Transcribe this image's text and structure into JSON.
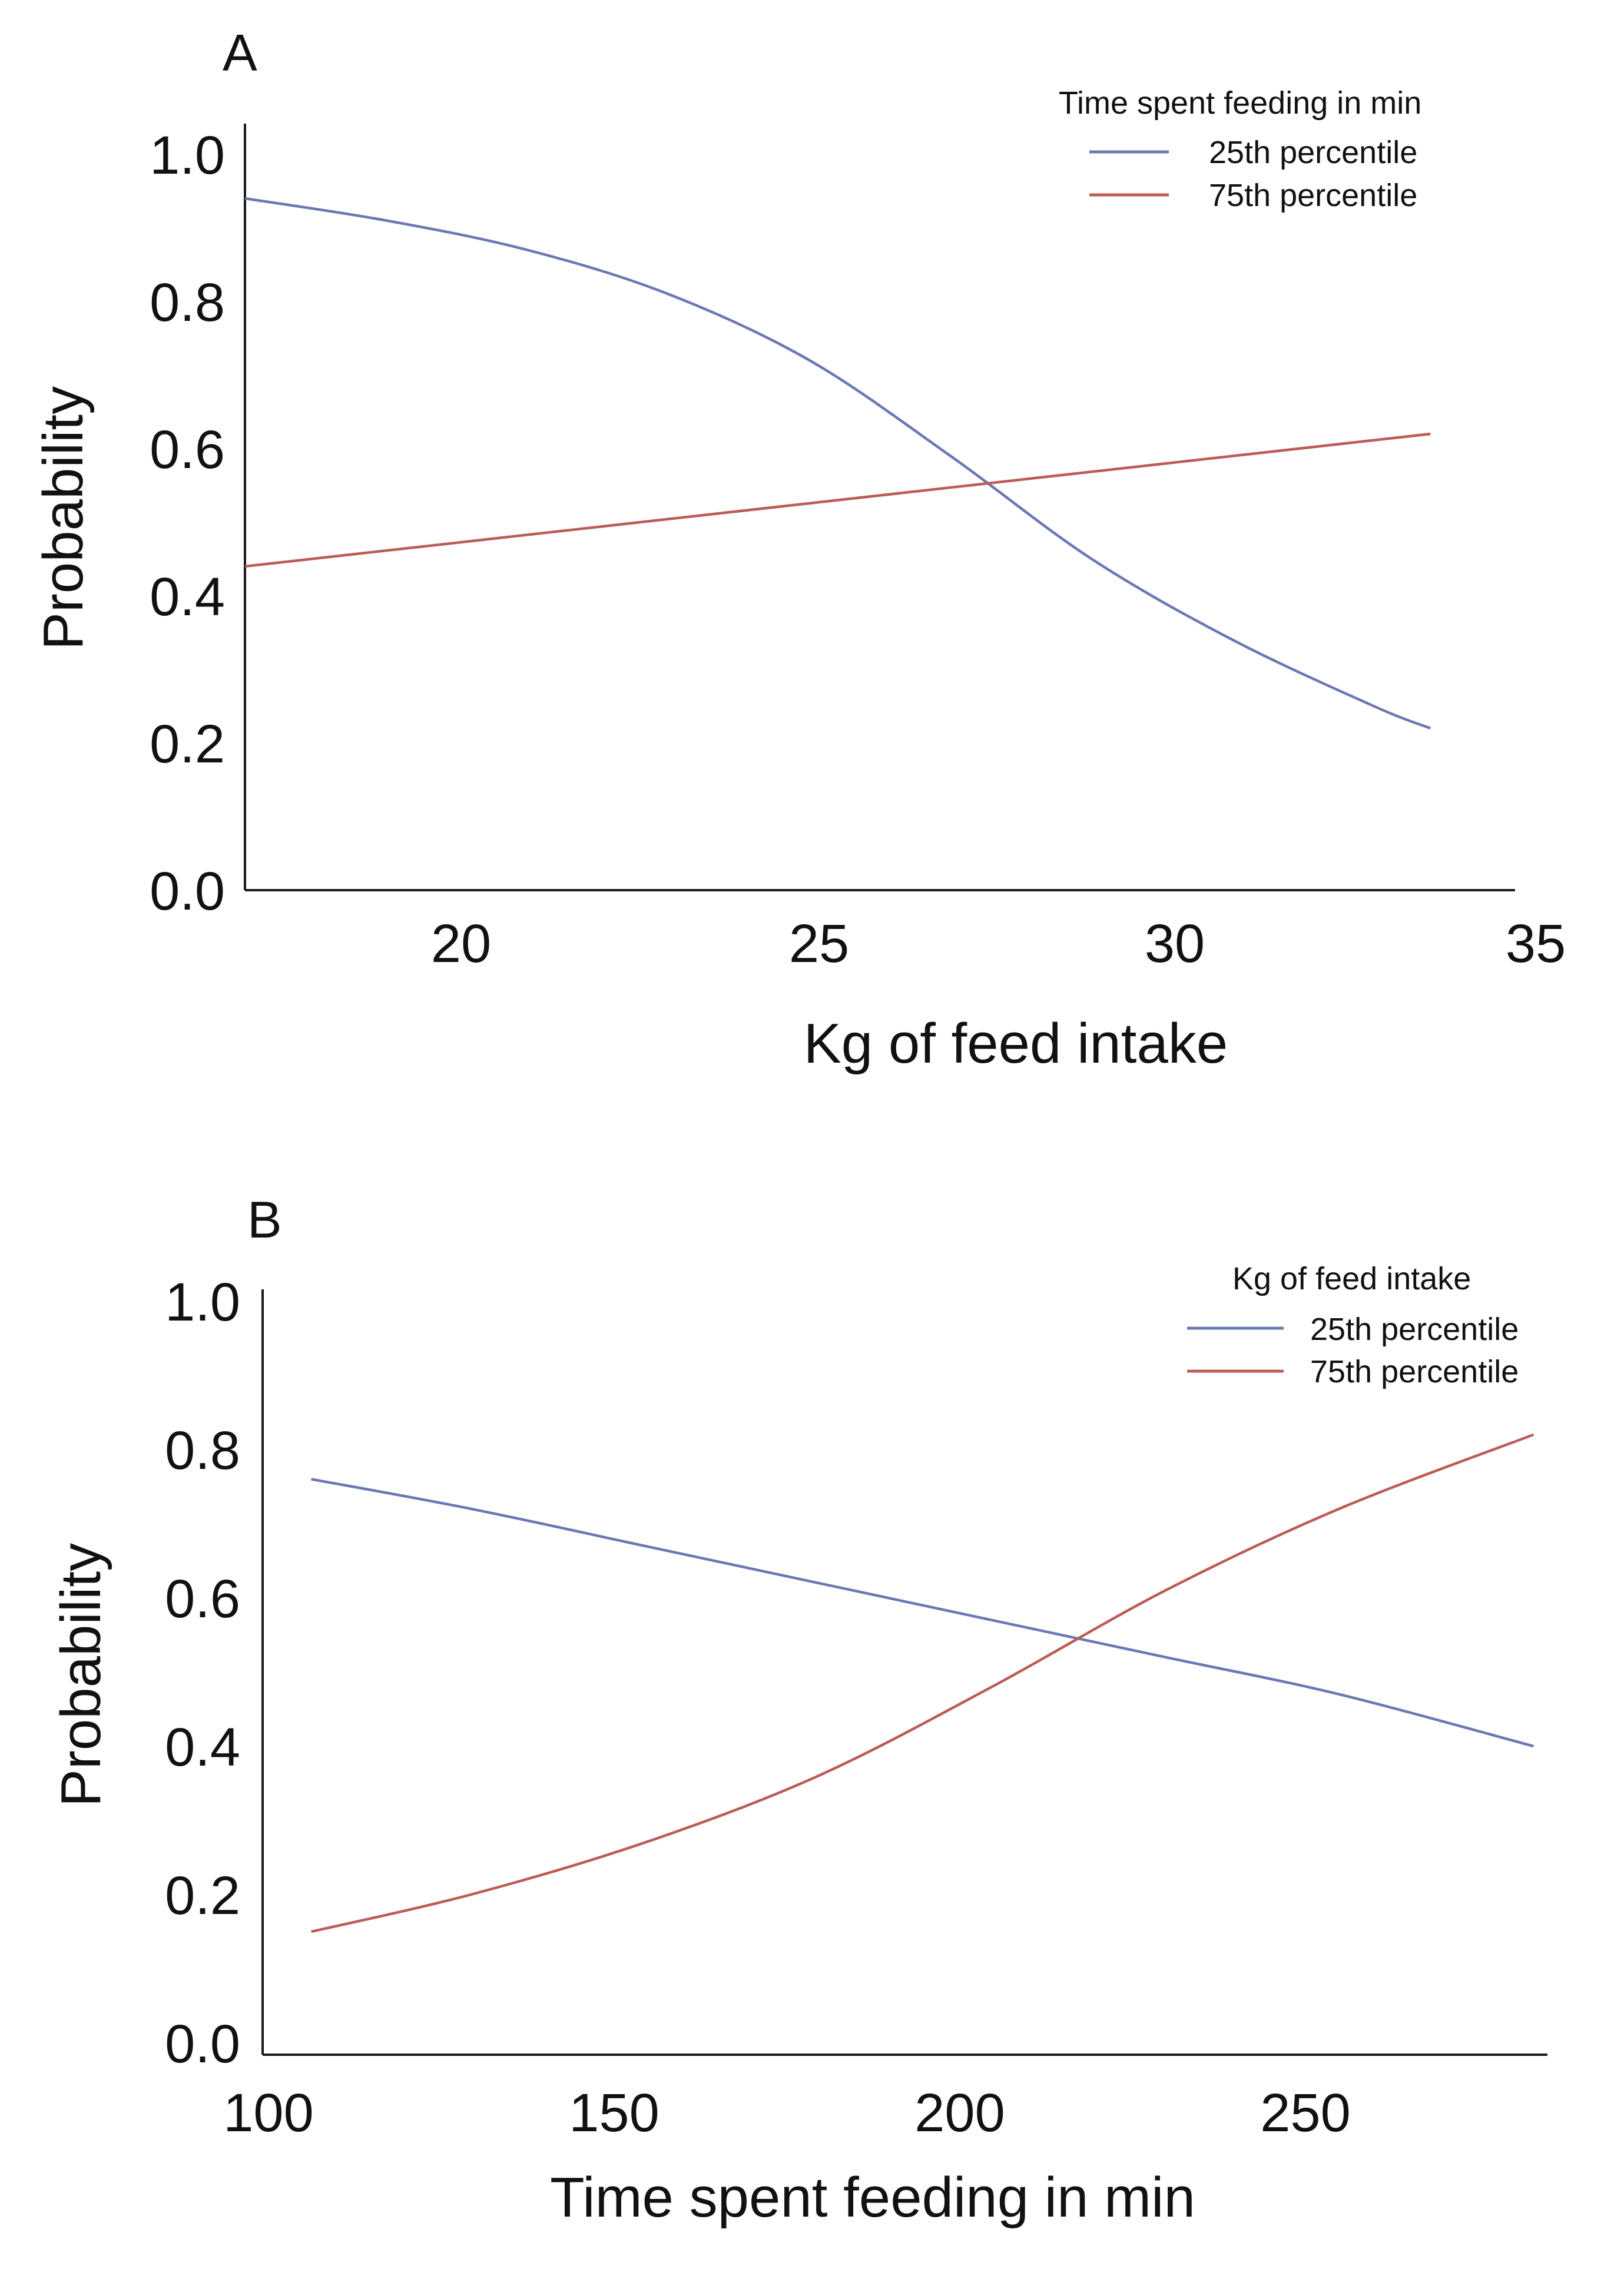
{
  "chart_data": [
    {
      "type": "line",
      "panel_label": "A",
      "title": "",
      "xlabel": "Kg of feed intake",
      "ylabel": "Probability",
      "xlim": [
        17,
        35
      ],
      "ylim": [
        0,
        1
      ],
      "xticks": [
        "20",
        "25",
        "30",
        "35"
      ],
      "yticks": [
        "0.0",
        "0.2",
        "0.4",
        "0.6",
        "0.8",
        "1.0"
      ],
      "grid": false,
      "legend": {
        "title": "Time spent feeding in min",
        "position": "top-right",
        "entries": [
          "25th percentile",
          "75th percentile"
        ]
      },
      "series": [
        {
          "name": "25th percentile",
          "color": "#6b78b4",
          "x": [
            17,
            19,
            21,
            23,
            25,
            27,
            29,
            31,
            33,
            33.8
          ],
          "y": [
            0.94,
            0.91,
            0.87,
            0.81,
            0.72,
            0.59,
            0.45,
            0.34,
            0.25,
            0.22
          ]
        },
        {
          "name": "75th percentile",
          "color": "#bb5c56",
          "x": [
            17,
            33.8
          ],
          "y": [
            0.44,
            0.62
          ]
        }
      ]
    },
    {
      "type": "line",
      "panel_label": "B",
      "title": "",
      "xlabel": "Time spent feeding in min",
      "ylabel": "Probability",
      "xlim": [
        100,
        285
      ],
      "ylim": [
        0,
        1
      ],
      "xticks": [
        "100",
        "150",
        "200",
        "250"
      ],
      "yticks": [
        "0.0",
        "0.2",
        "0.4",
        "0.6",
        "0.8",
        "1.0"
      ],
      "grid": false,
      "legend": {
        "title": "Kg of feed intake",
        "position": "top-right",
        "entries": [
          "25th percentile",
          "75th percentile"
        ]
      },
      "series": [
        {
          "name": "25th percentile",
          "color": "#6b78b4",
          "x": [
            107,
            130,
            155,
            180,
            205,
            230,
            255,
            283
          ],
          "y": [
            0.76,
            0.72,
            0.67,
            0.62,
            0.57,
            0.52,
            0.47,
            0.4
          ]
        },
        {
          "name": "75th percentile",
          "color": "#bb5c56",
          "x": [
            107,
            130,
            155,
            180,
            205,
            230,
            255,
            283
          ],
          "y": [
            0.15,
            0.2,
            0.27,
            0.36,
            0.48,
            0.61,
            0.72,
            0.82
          ]
        }
      ]
    }
  ]
}
